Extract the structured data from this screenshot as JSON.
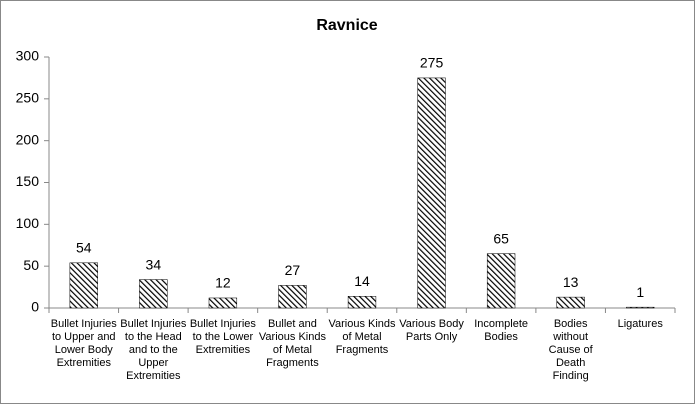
{
  "chart_data": {
    "type": "bar",
    "title": "Ravnice",
    "categories": [
      "Bullet Injuries to Upper and Lower Body Extremities",
      "Bullet Injuries to the Head and to the Upper Extremities",
      "Bullet Injuries to the Lower Extremities",
      "Bullet and Various Kinds of Metal Fragments",
      "Various Kinds of Metal Fragments",
      "Various Body Parts Only",
      "Incomplete Bodies",
      "Bodies without Cause of Death Finding",
      "Ligatures"
    ],
    "values": [
      54,
      34,
      12,
      27,
      14,
      275,
      65,
      13,
      1
    ],
    "color": "#000000",
    "ylim": [
      0,
      300
    ],
    "yticks": [
      0,
      50,
      100,
      150,
      200,
      250,
      300
    ],
    "grid": false
  }
}
